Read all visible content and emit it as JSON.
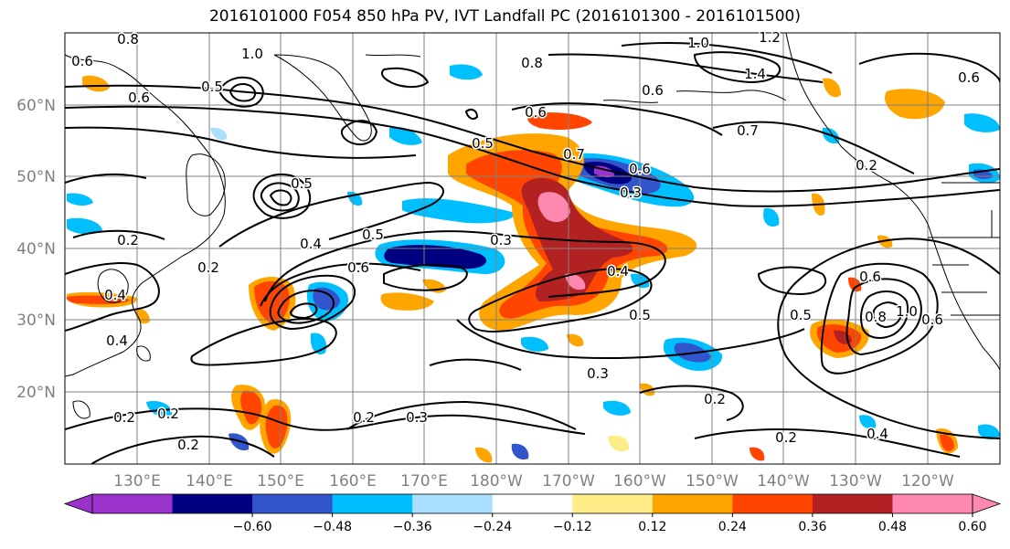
{
  "title": "2016101000 F054 850 hPa PV, IVT Landfall PC (2016101300 - 2016101500)",
  "lat_labels": [
    "60°N",
    "50°N",
    "40°N",
    "30°N",
    "20°N"
  ],
  "lon_labels": [
    "130°E",
    "140°E",
    "150°E",
    "160°E",
    "170°E",
    "180°W",
    "170°W",
    "160°W",
    "150°W",
    "140°W",
    "130°W",
    "120°W"
  ],
  "colorbar": {
    "colors": [
      "#9933cc",
      "#000080",
      "#3355cc",
      "#00bfff",
      "#aadfff",
      "#ffffff",
      "#ffee88",
      "#ffa500",
      "#ff4500",
      "#b22222",
      "#ff88b0"
    ],
    "tick_labels": [
      "-0.60",
      "-0.48",
      "-0.36",
      "-0.24",
      "-0.12",
      "0.12",
      "0.24",
      "0.36",
      "0.48",
      "0.60"
    ]
  },
  "contour_labels": [
    "0.8",
    "1.0",
    "0.6",
    "0.5",
    "0.6",
    "0.8",
    "1.0",
    "1.2",
    "1.4",
    "0.6",
    "0.6",
    "0.7",
    "0.5",
    "0.7",
    "0.6",
    "0.3",
    "0.5",
    "0.3",
    "0.4",
    "0.5",
    "0.6",
    "0.2",
    "0.2",
    "0.4",
    "0.4",
    "0.5",
    "0.4",
    "0.5",
    "0.6",
    "0.8",
    "1.0",
    "0.6",
    "0.3",
    "0.2",
    "0.2",
    "0.3",
    "0.2",
    "0.2",
    "0.2",
    "0.2",
    "0.4",
    "0.6",
    "0.2"
  ]
}
